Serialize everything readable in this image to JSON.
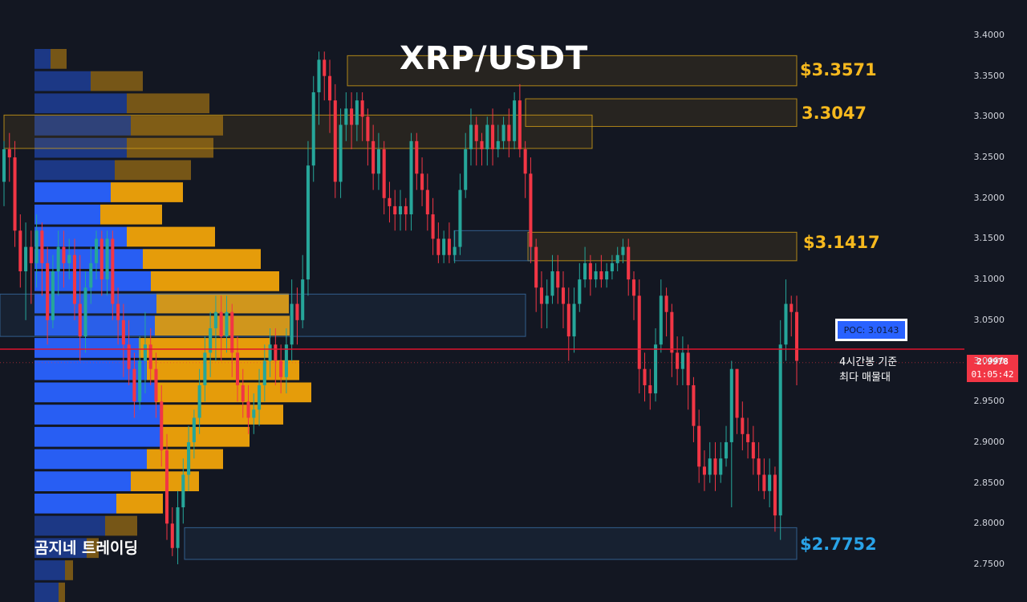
{
  "title": "XRP/USDT",
  "brand": "곰지네 트레이딩",
  "colors": {
    "background": "#131722",
    "bull": "#26a69a",
    "bear": "#f23645",
    "vp_buy": "#2962ff",
    "vp_sell": "#f0a30a",
    "zone_gold": "#d4a017",
    "zone_blue": "#3a6ea5",
    "poc_line": "#e0142c",
    "label_gold": "#f7b91e",
    "label_blue": "#29a3e8"
  },
  "zones": {
    "z1": {
      "label": "$3.3571",
      "top": 3.375,
      "bottom": 3.338,
      "color": "gold"
    },
    "z2": {
      "label": "3.3047",
      "top": 3.322,
      "bottom": 3.288,
      "color": "gold"
    },
    "z3": {
      "label": "$3.1417",
      "top": 3.158,
      "bottom": 3.123,
      "color": "gold"
    },
    "z4": {
      "label": "$2.7752",
      "top": 2.795,
      "bottom": 2.756,
      "color": "blue"
    }
  },
  "poc": {
    "label": "POC: 3.0143",
    "value": 3.0143,
    "note_line1": "4시간봉 기준",
    "note_line2": "최다 매물대"
  },
  "price_tag": {
    "value": "2.9978",
    "countdown": "01:05:42"
  },
  "chart_data": {
    "type": "candlestick",
    "title": "XRP/USDT",
    "ylim": [
      2.73,
      3.42
    ],
    "y_ticks": [
      "3.4000",
      "3.3500",
      "3.3000",
      "3.2500",
      "3.2000",
      "3.1500",
      "3.1000",
      "3.0500",
      "3.0000",
      "2.9500",
      "2.9000",
      "2.8500",
      "2.8000",
      "2.7500"
    ],
    "candles": [
      [
        3.22,
        3.26,
        3.27,
        3.19
      ],
      [
        3.26,
        3.25,
        3.28,
        3.22
      ],
      [
        3.25,
        3.16,
        3.27,
        3.14
      ],
      [
        3.16,
        3.11,
        3.18,
        3.09
      ],
      [
        3.11,
        3.14,
        3.17,
        3.05
      ],
      [
        3.14,
        3.12,
        3.16,
        3.07
      ],
      [
        3.12,
        3.16,
        3.18,
        3.09
      ],
      [
        3.16,
        3.12,
        3.17,
        3.08
      ],
      [
        3.12,
        3.05,
        3.14,
        3.02
      ],
      [
        3.05,
        3.11,
        3.13,
        3.04
      ],
      [
        3.11,
        3.14,
        3.16,
        3.08
      ],
      [
        3.14,
        3.12,
        3.16,
        3.09
      ],
      [
        3.12,
        3.13,
        3.15,
        3.1
      ],
      [
        3.13,
        3.07,
        3.15,
        3.05
      ],
      [
        3.07,
        3.03,
        3.13,
        3.0
      ],
      [
        3.03,
        3.09,
        3.11,
        3.01
      ],
      [
        3.09,
        3.12,
        3.14,
        3.07
      ],
      [
        3.12,
        3.15,
        3.16,
        3.1
      ],
      [
        3.15,
        3.1,
        3.16,
        3.08
      ],
      [
        3.1,
        3.15,
        3.16,
        3.08
      ],
      [
        3.15,
        3.07,
        3.16,
        3.05
      ],
      [
        3.07,
        3.05,
        3.09,
        3.02
      ],
      [
        3.05,
        3.02,
        3.07,
        2.98
      ],
      [
        3.02,
        2.99,
        3.05,
        2.97
      ],
      [
        2.99,
        2.95,
        3.01,
        2.93
      ],
      [
        2.95,
        3.0,
        3.03,
        2.94
      ],
      [
        3.0,
        3.02,
        3.06,
        2.96
      ],
      [
        3.02,
        2.99,
        3.04,
        2.97
      ],
      [
        2.99,
        2.95,
        3.01,
        2.93
      ],
      [
        2.95,
        2.89,
        2.97,
        2.87
      ],
      [
        2.89,
        2.8,
        2.91,
        2.78
      ],
      [
        2.8,
        2.77,
        2.82,
        2.76
      ],
      [
        2.77,
        2.82,
        2.84,
        2.75
      ],
      [
        2.82,
        2.86,
        2.88,
        2.8
      ],
      [
        2.86,
        2.9,
        2.92,
        2.84
      ],
      [
        2.9,
        2.93,
        2.94,
        2.88
      ],
      [
        2.93,
        2.97,
        2.99,
        2.91
      ],
      [
        2.97,
        3.01,
        3.03,
        2.95
      ],
      [
        3.01,
        3.04,
        3.06,
        2.98
      ],
      [
        3.04,
        3.06,
        3.08,
        3.0
      ],
      [
        3.06,
        3.03,
        3.08,
        3.0
      ],
      [
        3.03,
        3.06,
        3.08,
        3.01
      ],
      [
        3.06,
        3.01,
        3.07,
        2.98
      ],
      [
        3.01,
        2.97,
        3.03,
        2.95
      ],
      [
        2.97,
        2.95,
        2.99,
        2.93
      ],
      [
        2.95,
        2.93,
        2.97,
        2.91
      ],
      [
        2.93,
        2.94,
        2.96,
        2.91
      ],
      [
        2.94,
        2.97,
        2.99,
        2.92
      ],
      [
        2.97,
        3.0,
        3.02,
        2.95
      ],
      [
        3.0,
        3.02,
        3.04,
        2.98
      ],
      [
        3.02,
        3.0,
        3.04,
        2.97
      ],
      [
        3.0,
        2.98,
        3.02,
        2.96
      ],
      [
        2.98,
        3.02,
        3.04,
        2.96
      ],
      [
        3.02,
        3.07,
        3.1,
        3.0
      ],
      [
        3.07,
        3.05,
        3.09,
        3.02
      ],
      [
        3.05,
        3.1,
        3.13,
        3.04
      ],
      [
        3.1,
        3.24,
        3.27,
        3.08
      ],
      [
        3.24,
        3.33,
        3.35,
        3.22
      ],
      [
        3.33,
        3.37,
        3.38,
        3.29
      ],
      [
        3.37,
        3.35,
        3.38,
        3.32
      ],
      [
        3.35,
        3.32,
        3.37,
        3.28
      ],
      [
        3.32,
        3.22,
        3.34,
        3.2
      ],
      [
        3.22,
        3.29,
        3.31,
        3.2
      ],
      [
        3.29,
        3.31,
        3.33,
        3.27
      ],
      [
        3.31,
        3.29,
        3.33,
        3.26
      ],
      [
        3.29,
        3.32,
        3.33,
        3.27
      ],
      [
        3.32,
        3.3,
        3.33,
        3.27
      ],
      [
        3.3,
        3.27,
        3.31,
        3.24
      ],
      [
        3.27,
        3.23,
        3.29,
        3.21
      ],
      [
        3.23,
        3.26,
        3.28,
        3.21
      ],
      [
        3.26,
        3.2,
        3.27,
        3.18
      ],
      [
        3.2,
        3.19,
        3.22,
        3.17
      ],
      [
        3.19,
        3.18,
        3.21,
        3.16
      ],
      [
        3.18,
        3.19,
        3.21,
        3.16
      ],
      [
        3.19,
        3.18,
        3.2,
        3.16
      ],
      [
        3.18,
        3.27,
        3.28,
        3.16
      ],
      [
        3.27,
        3.23,
        3.28,
        3.21
      ],
      [
        3.23,
        3.21,
        3.25,
        3.19
      ],
      [
        3.21,
        3.18,
        3.23,
        3.16
      ],
      [
        3.18,
        3.15,
        3.2,
        3.13
      ],
      [
        3.15,
        3.13,
        3.17,
        3.12
      ],
      [
        3.13,
        3.15,
        3.16,
        3.12
      ],
      [
        3.15,
        3.13,
        3.17,
        3.12
      ],
      [
        3.13,
        3.14,
        3.16,
        3.12
      ],
      [
        3.14,
        3.21,
        3.23,
        3.13
      ],
      [
        3.21,
        3.26,
        3.28,
        3.2
      ],
      [
        3.26,
        3.29,
        3.31,
        3.24
      ],
      [
        3.29,
        3.27,
        3.3,
        3.24
      ],
      [
        3.27,
        3.26,
        3.28,
        3.24
      ],
      [
        3.26,
        3.29,
        3.3,
        3.24
      ],
      [
        3.29,
        3.26,
        3.31,
        3.24
      ],
      [
        3.26,
        3.27,
        3.29,
        3.25
      ],
      [
        3.27,
        3.29,
        3.3,
        3.26
      ],
      [
        3.29,
        3.27,
        3.31,
        3.25
      ],
      [
        3.27,
        3.32,
        3.33,
        3.26
      ],
      [
        3.32,
        3.26,
        3.34,
        3.25
      ],
      [
        3.26,
        3.23,
        3.27,
        3.2
      ],
      [
        3.23,
        3.14,
        3.25,
        3.12
      ],
      [
        3.14,
        3.09,
        3.15,
        3.06
      ],
      [
        3.09,
        3.07,
        3.11,
        3.04
      ],
      [
        3.07,
        3.08,
        3.1,
        3.04
      ],
      [
        3.08,
        3.11,
        3.13,
        3.07
      ],
      [
        3.11,
        3.09,
        3.13,
        3.07
      ],
      [
        3.09,
        3.07,
        3.11,
        3.04
      ],
      [
        3.07,
        3.03,
        3.09,
        3.0
      ],
      [
        3.03,
        3.07,
        3.09,
        3.01
      ],
      [
        3.07,
        3.1,
        3.12,
        3.06
      ],
      [
        3.1,
        3.12,
        3.14,
        3.09
      ],
      [
        3.12,
        3.1,
        3.13,
        3.08
      ],
      [
        3.1,
        3.11,
        3.12,
        3.09
      ],
      [
        3.11,
        3.1,
        3.13,
        3.09
      ],
      [
        3.1,
        3.11,
        3.12,
        3.09
      ],
      [
        3.11,
        3.12,
        3.13,
        3.1
      ],
      [
        3.12,
        3.13,
        3.14,
        3.11
      ],
      [
        3.13,
        3.14,
        3.15,
        3.12
      ],
      [
        3.14,
        3.1,
        3.15,
        3.08
      ],
      [
        3.1,
        3.08,
        3.11,
        3.05
      ],
      [
        3.08,
        2.99,
        3.1,
        2.96
      ],
      [
        2.99,
        2.97,
        3.01,
        2.95
      ],
      [
        2.97,
        2.96,
        2.99,
        2.94
      ],
      [
        2.96,
        3.02,
        3.04,
        2.95
      ],
      [
        3.02,
        3.08,
        3.1,
        3.01
      ],
      [
        3.08,
        3.06,
        3.09,
        3.03
      ],
      [
        3.06,
        3.01,
        3.07,
        2.98
      ],
      [
        3.01,
        2.99,
        3.03,
        2.97
      ],
      [
        2.99,
        3.01,
        3.03,
        2.97
      ],
      [
        3.01,
        2.97,
        3.02,
        2.94
      ],
      [
        2.97,
        2.92,
        2.98,
        2.9
      ],
      [
        2.92,
        2.87,
        2.94,
        2.85
      ],
      [
        2.87,
        2.86,
        2.89,
        2.84
      ],
      [
        2.86,
        2.88,
        2.9,
        2.85
      ],
      [
        2.88,
        2.86,
        2.9,
        2.84
      ],
      [
        2.86,
        2.88,
        2.9,
        2.85
      ],
      [
        2.88,
        2.9,
        2.92,
        2.87
      ],
      [
        2.9,
        2.99,
        3.0,
        2.82
      ],
      [
        2.99,
        2.93,
        2.99,
        2.91
      ],
      [
        2.93,
        2.91,
        2.95,
        2.89
      ],
      [
        2.91,
        2.9,
        2.93,
        2.88
      ],
      [
        2.9,
        2.88,
        2.92,
        2.86
      ],
      [
        2.88,
        2.86,
        2.9,
        2.84
      ],
      [
        2.86,
        2.84,
        2.88,
        2.83
      ],
      [
        2.84,
        2.86,
        2.88,
        2.82
      ],
      [
        2.86,
        2.81,
        2.87,
        2.79
      ],
      [
        2.81,
        3.02,
        3.05,
        2.78
      ],
      [
        3.02,
        3.07,
        3.1,
        3.0
      ],
      [
        3.07,
        3.06,
        3.08,
        3.03
      ],
      [
        3.06,
        3.0,
        3.08,
        2.97
      ]
    ]
  }
}
